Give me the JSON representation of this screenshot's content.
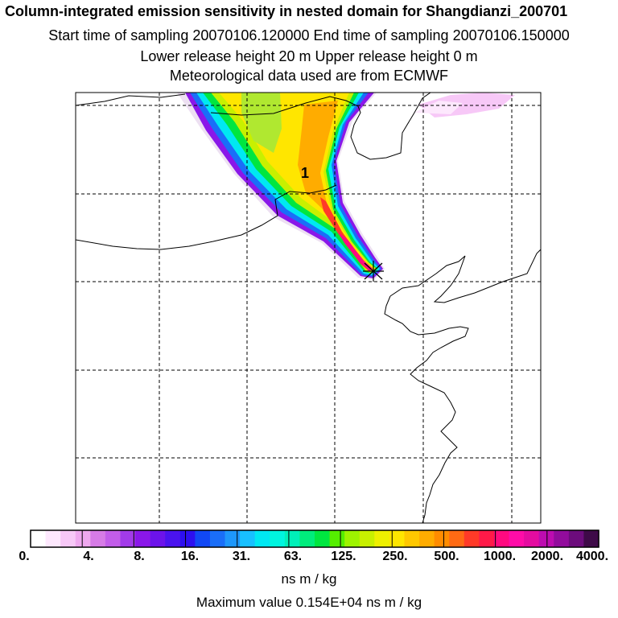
{
  "titles": {
    "line1": "Column-integrated emission sensitivity in nested domain for Shangdianzi_200701",
    "line2": "Start time of sampling 20070106.120000     End time of sampling 20070106.150000",
    "line3": "Lower release height   20 m          Upper release height    0 m",
    "line4": "Meteorological data used are from ECMWF"
  },
  "map": {
    "receptor_label": "1"
  },
  "colorbar": {
    "colors": [
      "#ffffff",
      "#fde8fd",
      "#f7c8f7",
      "#efa8ef",
      "#d67be6",
      "#c25de9",
      "#a23be9",
      "#8a17e9",
      "#6c13ea",
      "#4a13ee",
      "#2d0ff0",
      "#1148f5",
      "#1a6ef8",
      "#1e97fb",
      "#18c0ff",
      "#00e8f2",
      "#00f5df",
      "#00f0b9",
      "#00ec7c",
      "#00e640",
      "#55ee00",
      "#9ef300",
      "#c8f000",
      "#eef000",
      "#ffe600",
      "#ffc800",
      "#ffac00",
      "#ff8c00",
      "#ff6a14",
      "#ff3a28",
      "#ff1a48",
      "#ff0a80",
      "#ff0ca8",
      "#e40ca0",
      "#bd0cb0",
      "#920c9c",
      "#6c0c7c",
      "#3e0a48"
    ],
    "tick_labels": [
      "0.",
      "4.",
      "8.",
      "16.",
      "31.",
      "63.",
      "125.",
      "250.",
      "500.",
      "1000.",
      "2000.",
      "4000."
    ],
    "unit": "ns m / kg"
  },
  "footer": {
    "max_value": "Maximum value  0.154E+04 ns m / kg"
  },
  "chart_data": {
    "type": "heatmap",
    "title": "Column-integrated emission sensitivity in nested domain for Shangdianzi_200701",
    "subtitle": "Start time of sampling 20070106.120000 / End time of sampling 20070106.150000",
    "variable": "column-integrated emission sensitivity",
    "units": "ns m / kg",
    "colorbar_levels": [
      0,
      4,
      8,
      16,
      31,
      63,
      125,
      250,
      500,
      1000,
      2000,
      4000
    ],
    "maximum_value": 1540,
    "receptor_marker": "1",
    "meteorology": "ECMWF"
  }
}
